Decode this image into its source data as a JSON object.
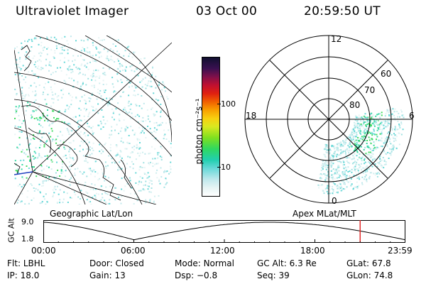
{
  "header": {
    "instrument": "Ultraviolet Imager",
    "date": "03 Oct 00",
    "time": "20:59:50 UT"
  },
  "colorbar": {
    "unit_label": "photon cm⁻²s⁻¹",
    "ticks": [
      "100",
      "10"
    ]
  },
  "polar": {
    "mlt_labels": {
      "top": "12",
      "left": "18",
      "right": "6",
      "bottom": "0"
    },
    "lat_labels": [
      "60",
      "70",
      "80"
    ]
  },
  "timeline": {
    "left_title": "Geographic Lat/Lon",
    "right_title": "Apex MLat/MLT",
    "axis_label": "GC Alt",
    "y_ticks": [
      "9.0",
      "1.8"
    ],
    "x_ticks": [
      "00:00",
      "06:00",
      "12:00",
      "18:00",
      "23:59"
    ],
    "current_marker_hours": 21.0
  },
  "info": {
    "row1": [
      {
        "key": "Flt:",
        "value": "LBHL"
      },
      {
        "key": "Door:",
        "value": "Closed"
      },
      {
        "key": "Mode:",
        "value": "Normal"
      },
      {
        "key": "GC Alt:",
        "value": "6.3 Re"
      },
      {
        "key": "GLat:",
        "value": "67.8"
      }
    ],
    "row2": [
      {
        "key": "IP:",
        "value": "18.0"
      },
      {
        "key": "Gain:",
        "value": "13"
      },
      {
        "key": "Dsp:",
        "value": "−0.8"
      },
      {
        "key": "Seq:",
        "value": "39"
      },
      {
        "key": "GLon:",
        "value": "74.8"
      }
    ]
  },
  "colors": {
    "marker": "#e02020",
    "ink": "#000000"
  }
}
